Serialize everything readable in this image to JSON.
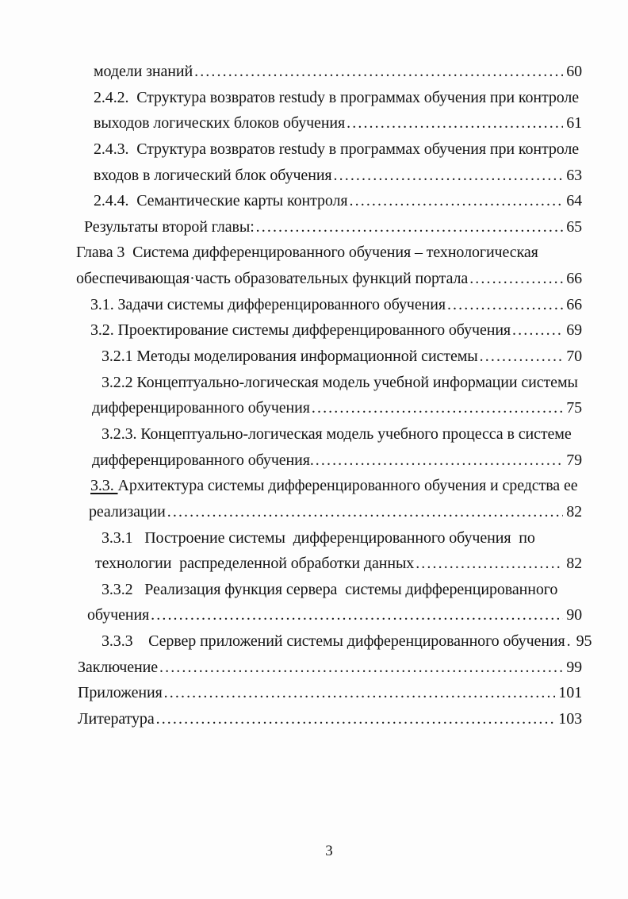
{
  "page": {
    "number": "3"
  },
  "toc": {
    "rows": [
      {
        "text": "модели знаний",
        "page": "60"
      },
      {
        "text": "2.4.2.  Структура возвратов restudy в программах обучения при контроле"
      },
      {
        "text": "выходов логических блоков обучения",
        "page": "61"
      },
      {
        "text": "2.4.3.  Структура возвратов restudy в программах обучения при контроле"
      },
      {
        "text": "входов в логический блок обучения",
        "page": "63"
      },
      {
        "text": "2.4.4.  Семантические карты контроля",
        "page": "64"
      },
      {
        "text": "Результаты второй главы:",
        "page": "65"
      },
      {
        "text": "Глава 3  Система дифференцированного обучения – технологическая"
      },
      {
        "text": "обеспечивающая·часть образовательных функций портала",
        "page": "66"
      },
      {
        "text": "3.1. Задачи системы дифференцированного обучения",
        "page": "66"
      },
      {
        "text": "3.2. Проектирование системы дифференцированного обучения",
        "page": "69"
      },
      {
        "text": "3.2.1 Методы моделирования информационной системы",
        "page": "70"
      },
      {
        "text": "3.2.2 Концептуально-логическая модель учебной информации системы"
      },
      {
        "text": "дифференцированного обучения",
        "page": "75"
      },
      {
        "text": "3.2.3. Концептуально-логическая модель учебного процесса в системе"
      },
      {
        "text": "дифференцированного обучения.",
        "page": "79"
      },
      {
        "prefix": "3.3. ",
        "text": "Архитектура системы дифференцированного обучения и средства ее"
      },
      {
        "text": "реализации",
        "page": "82"
      },
      {
        "text": "3.3.1   Построение системы  дифференцированного обучения  по"
      },
      {
        "text": "технологии  распределенной обработки данных",
        "page": "82"
      },
      {
        "text": "3.3.2   Реализация функция сервера  системы дифференцированного"
      },
      {
        "text": "обучения",
        "page": "90"
      },
      {
        "text": "3.3.3    Сервер приложений системы дифференцированного обучения",
        "page": "95"
      },
      {
        "text": "Заключение",
        "page": "99"
      },
      {
        "text": "Приложения",
        "page": "101"
      },
      {
        "text": "Литература",
        "page": "103"
      }
    ]
  }
}
